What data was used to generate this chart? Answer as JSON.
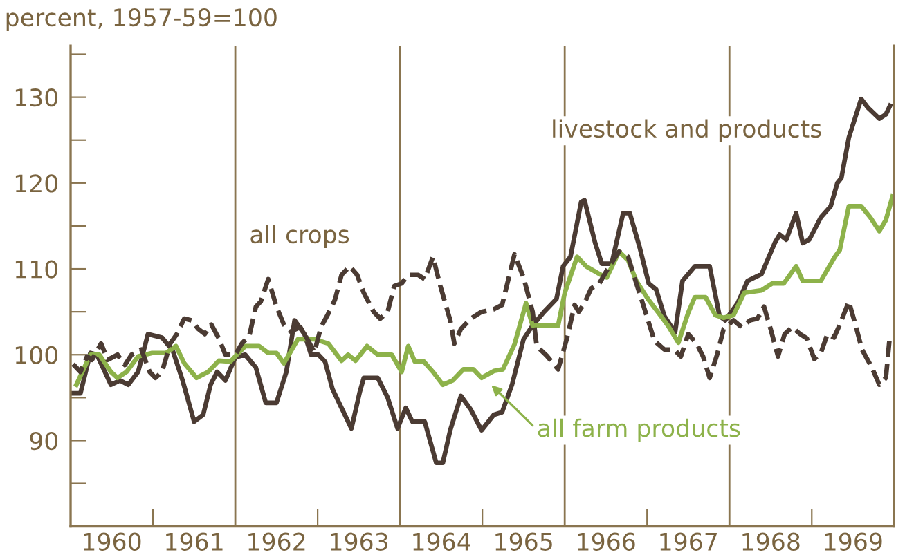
{
  "chart_data": {
    "type": "line",
    "ylabel": "percent, 1957-59=100",
    "annotations": [
      "all crops"
    ],
    "xlim": [
      1960,
      1970
    ],
    "ylim": [
      80,
      136
    ],
    "xticks": [
      {
        "value": 1960.5,
        "label": "1960"
      },
      {
        "value": 1961,
        "label": null
      },
      {
        "value": 1961.5,
        "label": "1961"
      },
      {
        "value": 1962.5,
        "label": "1962"
      },
      {
        "value": 1963,
        "label": null
      },
      {
        "value": 1963.5,
        "label": "1963"
      },
      {
        "value": 1964.5,
        "label": "1964"
      },
      {
        "value": 1965,
        "label": null
      },
      {
        "value": 1965.5,
        "label": "1965"
      },
      {
        "value": 1966.5,
        "label": "1966"
      },
      {
        "value": 1967,
        "label": null
      },
      {
        "value": 1967.5,
        "label": "1967"
      },
      {
        "value": 1968.5,
        "label": "1968"
      },
      {
        "value": 1969,
        "label": null
      },
      {
        "value": 1969.5,
        "label": "1969"
      }
    ],
    "yticks": [
      {
        "value": 85,
        "label": null
      },
      90,
      {
        "value": 95,
        "label": null
      },
      100,
      {
        "value": 105,
        "label": null
      },
      110,
      {
        "value": 115,
        "label": null
      },
      120,
      {
        "value": 125,
        "label": null
      },
      130,
      {
        "value": 135,
        "label": null
      }
    ],
    "ref_lines": [
      {
        "axis": "x",
        "value": 1962,
        "label": null,
        "color": "#8a7550"
      },
      {
        "axis": "x",
        "value": 1964,
        "label": null,
        "color": "#8a7550"
      },
      {
        "axis": "x",
        "value": 1966,
        "label": null,
        "color": "#8a7550"
      },
      {
        "axis": "x",
        "value": 1968,
        "label": null,
        "color": "#8a7550"
      }
    ],
    "grid": false,
    "legend": false,
    "marker": "none",
    "series": [
      {
        "name": "livestock and products",
        "color": "#4b3b33",
        "line_style": "solid",
        "x": [
          1960.02,
          1960.12,
          1960.24,
          1960.32,
          1960.49,
          1960.6,
          1960.7,
          1960.82,
          1960.94,
          1961.11,
          1961.24,
          1961.36,
          1961.5,
          1961.61,
          1961.7,
          1961.78,
          1961.88,
          1962.0,
          1962.12,
          1962.25,
          1962.37,
          1962.5,
          1962.62,
          1962.72,
          1962.84,
          1962.92,
          1963.01,
          1963.09,
          1963.18,
          1963.29,
          1963.41,
          1963.51,
          1963.56,
          1963.73,
          1963.85,
          1963.97,
          1964.07,
          1964.15,
          1964.3,
          1964.44,
          1964.52,
          1964.61,
          1964.74,
          1964.86,
          1964.99,
          1965.14,
          1965.24,
          1965.36,
          1965.5,
          1965.61,
          1965.75,
          1965.9,
          1965.98,
          1966.07,
          1966.2,
          1966.24,
          1966.37,
          1966.45,
          1966.57,
          1966.71,
          1966.79,
          1966.91,
          1967.02,
          1967.11,
          1967.21,
          1967.34,
          1967.43,
          1967.58,
          1967.76,
          1967.88,
          1967.95,
          1968.1,
          1968.22,
          1968.39,
          1968.55,
          1968.61,
          1968.69,
          1968.81,
          1968.89,
          1968.97,
          1969.11,
          1969.23,
          1969.31,
          1969.36,
          1969.45,
          1969.6,
          1969.68,
          1969.82,
          1969.9,
          1969.95
        ],
        "values": [
          95.5,
          95.5,
          100.2,
          100,
          96.5,
          97,
          96.5,
          98,
          102.4,
          102,
          100.5,
          97,
          92.2,
          93,
          96.5,
          98,
          97,
          99.7,
          100,
          98.5,
          94.4,
          94.4,
          98,
          104,
          102.4,
          100,
          100,
          99.2,
          96,
          93.8,
          91.4,
          95.6,
          97.3,
          97.3,
          95,
          91.4,
          93.8,
          92.2,
          92.2,
          87.4,
          87.4,
          91.2,
          95.2,
          93.6,
          91.2,
          93,
          93.3,
          96.5,
          101.8,
          103.4,
          105,
          106.5,
          110.3,
          111.4,
          117.8,
          118,
          113,
          110.6,
          110.6,
          116.5,
          116.5,
          112.5,
          108.3,
          107.6,
          104.5,
          102.6,
          108.6,
          110.3,
          110.3,
          104.5,
          104,
          106,
          108.6,
          109.4,
          113,
          114,
          113.4,
          116.5,
          113,
          113.4,
          116,
          117.3,
          120,
          120.6,
          125.3,
          129.8,
          128.8,
          127.5,
          128,
          129
        ]
      },
      {
        "name": "all farm products",
        "color": "#8db24a",
        "line_style": "solid",
        "x": [
          1960.07,
          1960.24,
          1960.35,
          1960.49,
          1960.57,
          1960.68,
          1960.82,
          1960.99,
          1961.16,
          1961.28,
          1961.38,
          1961.53,
          1961.67,
          1961.8,
          1961.94,
          1962.12,
          1962.29,
          1962.4,
          1962.5,
          1962.59,
          1962.76,
          1962.96,
          1963.13,
          1963.29,
          1963.37,
          1963.46,
          1963.6,
          1963.73,
          1963.9,
          1964.02,
          1964.1,
          1964.18,
          1964.29,
          1964.4,
          1964.52,
          1964.64,
          1964.77,
          1964.89,
          1964.99,
          1965.14,
          1965.25,
          1965.39,
          1965.53,
          1965.61,
          1965.78,
          1965.92,
          1966.0,
          1966.15,
          1966.26,
          1966.42,
          1966.51,
          1966.66,
          1966.77,
          1966.87,
          1967.01,
          1967.16,
          1967.26,
          1967.38,
          1967.5,
          1967.58,
          1967.71,
          1967.83,
          1967.93,
          1968.05,
          1968.18,
          1968.39,
          1968.52,
          1968.66,
          1968.81,
          1968.89,
          1969.11,
          1969.28,
          1969.34,
          1969.45,
          1969.6,
          1969.71,
          1969.82,
          1969.9,
          1969.98
        ],
        "values": [
          96.5,
          100,
          100,
          98,
          97.3,
          98,
          99.8,
          100.2,
          100.2,
          101,
          99,
          97.3,
          98,
          99.3,
          99.2,
          101,
          101,
          100.2,
          100.2,
          99,
          101.8,
          101.8,
          101.3,
          99.3,
          100,
          99.3,
          101,
          100,
          100,
          98,
          101,
          99.2,
          99.2,
          98,
          96.5,
          97,
          98.3,
          98.3,
          97.3,
          98.1,
          98.3,
          101.2,
          106,
          103.4,
          103.4,
          103.4,
          107.2,
          111.4,
          110.3,
          109.4,
          109,
          112,
          111,
          108.6,
          106.5,
          104.6,
          103.3,
          101.4,
          104.9,
          106.7,
          106.7,
          104.6,
          104.3,
          104.6,
          107.2,
          107.5,
          108.3,
          108.3,
          110.3,
          108.6,
          108.6,
          111.4,
          112.2,
          117.3,
          117.3,
          116,
          114.4,
          115.7,
          118.4
        ]
      },
      {
        "name": null,
        "color": "#4b3b33",
        "line_style": "dashed",
        "x": [
          1960.03,
          1960.12,
          1960.2,
          1960.26,
          1960.37,
          1960.45,
          1960.57,
          1960.66,
          1960.74,
          1960.86,
          1960.96,
          1961.03,
          1961.11,
          1961.21,
          1961.29,
          1961.38,
          1961.47,
          1961.55,
          1961.63,
          1961.71,
          1961.8,
          1961.88,
          1962.0,
          1962.08,
          1962.17,
          1962.25,
          1962.31,
          1962.4,
          1962.5,
          1962.59,
          1962.67,
          1962.79,
          1962.87,
          1962.96,
          1963.04,
          1963.13,
          1963.21,
          1963.29,
          1963.39,
          1963.48,
          1963.56,
          1963.68,
          1963.76,
          1963.85,
          1963.93,
          1964.02,
          1964.1,
          1964.22,
          1964.3,
          1964.4,
          1964.49,
          1964.61,
          1964.66,
          1964.74,
          1964.86,
          1964.99,
          1965.14,
          1965.24,
          1965.39,
          1965.5,
          1965.61,
          1965.66,
          1965.78,
          1965.92,
          1966.03,
          1966.12,
          1966.17,
          1966.24,
          1966.32,
          1966.42,
          1966.54,
          1966.66,
          1966.77,
          1966.87,
          1966.96,
          1967.09,
          1967.21,
          1967.33,
          1967.41,
          1967.5,
          1967.6,
          1967.68,
          1967.76,
          1967.85,
          1967.93,
          1968.05,
          1968.15,
          1968.25,
          1968.34,
          1968.42,
          1968.5,
          1968.59,
          1968.67,
          1968.76,
          1968.86,
          1968.94,
          1969.03,
          1969.11,
          1969.19,
          1969.27,
          1969.34,
          1969.45,
          1969.53,
          1969.61,
          1969.73,
          1969.82,
          1969.9,
          1969.95
        ],
        "values": [
          98.9,
          98,
          99.8,
          99.4,
          101.3,
          99.4,
          100,
          98.8,
          100,
          100.6,
          98,
          97.3,
          98,
          101.3,
          102.4,
          104.2,
          104,
          103,
          102.4,
          103.5,
          101.9,
          100,
          100,
          101.3,
          102.2,
          105.6,
          106.2,
          108.8,
          105.6,
          103.5,
          102.7,
          103.2,
          101.9,
          100.3,
          103.2,
          104.8,
          106.4,
          109.3,
          110.3,
          109.3,
          107.2,
          105,
          104.2,
          105,
          108,
          108.3,
          109.3,
          109.3,
          108.8,
          111.4,
          108,
          104,
          101.3,
          103,
          104.2,
          105,
          105.3,
          105.8,
          111.7,
          109,
          105,
          101,
          99.9,
          98.3,
          102,
          105.8,
          105,
          106,
          107.7,
          108.3,
          110.3,
          112,
          111.4,
          108.3,
          105.6,
          101.6,
          100.6,
          100.6,
          99.8,
          102.4,
          101.3,
          99.8,
          97.3,
          100,
          103,
          104,
          103.2,
          104,
          104.2,
          105.6,
          103,
          99.8,
          102.4,
          103.2,
          102.4,
          101.9,
          99.5,
          100.2,
          102.4,
          102,
          103.5,
          106.2,
          103.5,
          100.6,
          98.5,
          96.5,
          97.3,
          102.4
        ]
      }
    ]
  }
}
